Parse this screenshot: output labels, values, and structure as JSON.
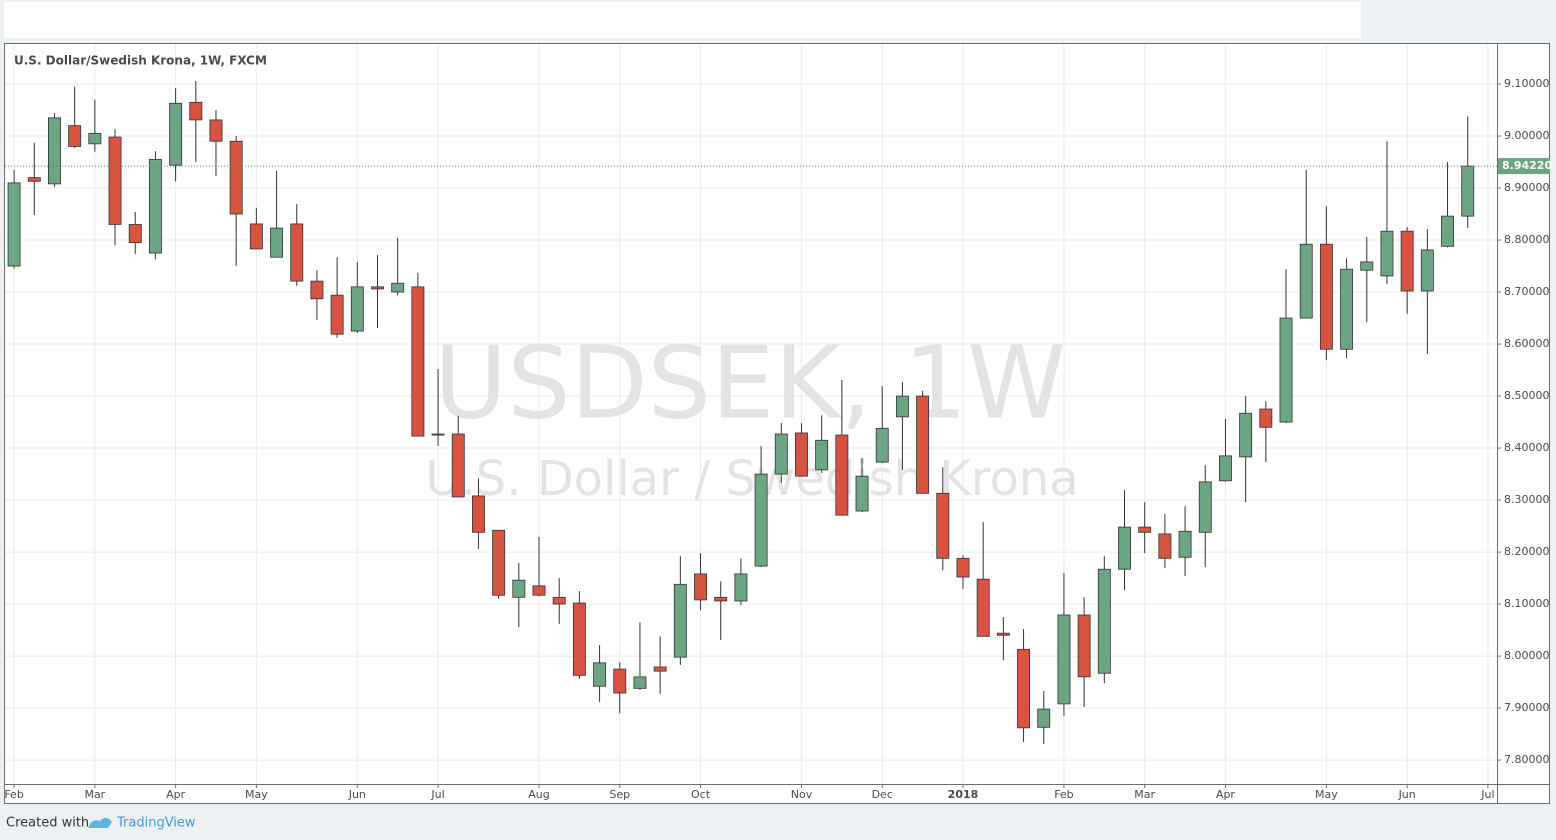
{
  "chart_data": {
    "type": "candlestick",
    "title": "U.S. Dollar/Swedish Krona, 1W, FXCM",
    "watermark": "USDSEK, 1W",
    "watermark_subtitle": "U.S. Dollar / Swedish Krona",
    "footer": "Created with",
    "footer_brand": "TradingView",
    "up_color": "#6ba583",
    "down_color": "#d75442",
    "grid": true,
    "open": [
      8.75,
      8.92,
      8.908,
      9.02,
      8.985,
      8.998,
      8.83,
      8.775,
      8.944,
      9.065,
      9.031,
      8.99,
      8.831,
      8.767,
      8.831,
      8.721,
      8.694,
      8.625,
      8.71,
      8.7,
      8.71,
      8.427,
      8.427,
      8.308,
      8.242,
      8.113,
      8.135,
      8.113,
      8.102,
      7.942,
      7.975,
      7.938,
      7.979,
      7.998,
      8.158,
      8.113,
      8.106,
      8.173,
      8.35,
      8.429,
      8.358,
      8.425,
      8.279,
      8.373,
      8.46,
      8.5,
      8.313,
      8.188,
      8.148,
      8.044,
      8.013,
      7.863,
      7.908,
      8.079,
      7.967,
      8.167,
      8.248,
      8.235,
      8.19,
      8.238,
      8.337,
      8.383,
      8.475,
      8.45,
      8.65,
      8.792,
      8.59,
      8.742,
      8.731,
      8.817,
      8.702,
      8.788,
      8.846
    ],
    "high": [
      8.935,
      8.987,
      9.044,
      9.095,
      9.07,
      9.013,
      8.854,
      8.971,
      9.092,
      9.106,
      9.05,
      9.0,
      8.862,
      8.933,
      8.869,
      8.742,
      8.767,
      8.758,
      8.771,
      8.804,
      8.737,
      8.552,
      8.462,
      8.342,
      8.242,
      8.179,
      8.229,
      8.15,
      8.125,
      8.021,
      7.988,
      8.065,
      8.038,
      8.192,
      8.198,
      8.144,
      8.188,
      8.404,
      8.448,
      8.448,
      8.463,
      8.531,
      8.381,
      8.519,
      8.527,
      8.51,
      8.363,
      8.194,
      8.258,
      8.075,
      8.052,
      7.933,
      8.16,
      8.113,
      8.192,
      8.319,
      8.296,
      8.273,
      8.288,
      8.367,
      8.456,
      8.5,
      8.49,
      8.744,
      8.935,
      8.865,
      8.765,
      8.806,
      8.99,
      8.825,
      8.821,
      8.95,
      9.038
    ],
    "low": [
      8.745,
      8.848,
      8.902,
      8.977,
      8.97,
      8.79,
      8.773,
      8.763,
      8.913,
      8.95,
      8.923,
      8.75,
      8.783,
      8.767,
      8.712,
      8.646,
      8.612,
      8.621,
      8.631,
      8.694,
      8.423,
      8.404,
      8.306,
      8.206,
      8.11,
      8.056,
      8.115,
      8.062,
      7.956,
      7.912,
      7.89,
      7.935,
      7.927,
      7.983,
      8.088,
      8.031,
      8.098,
      8.171,
      8.333,
      8.346,
      8.352,
      8.271,
      8.277,
      8.371,
      8.358,
      8.313,
      8.165,
      8.129,
      8.038,
      7.992,
      7.835,
      7.831,
      7.885,
      7.902,
      7.948,
      8.127,
      8.198,
      8.169,
      8.154,
      8.171,
      8.335,
      8.296,
      8.373,
      8.448,
      8.65,
      8.569,
      8.573,
      8.642,
      8.715,
      8.658,
      8.581,
      8.786,
      8.823
    ],
    "close": [
      8.91,
      8.913,
      9.035,
      8.98,
      9.005,
      8.83,
      8.795,
      8.955,
      9.063,
      9.031,
      8.99,
      8.85,
      8.783,
      8.823,
      8.721,
      8.687,
      8.619,
      8.71,
      8.706,
      8.717,
      8.423,
      8.425,
      8.306,
      8.238,
      8.117,
      8.146,
      8.117,
      8.1,
      7.963,
      7.987,
      7.929,
      7.96,
      7.971,
      8.138,
      8.108,
      8.106,
      8.158,
      8.35,
      8.427,
      8.346,
      8.415,
      8.271,
      8.346,
      8.438,
      8.5,
      8.313,
      8.188,
      8.152,
      8.038,
      8.04,
      7.862,
      7.898,
      8.079,
      7.96,
      8.167,
      8.248,
      8.238,
      8.188,
      8.24,
      8.335,
      8.385,
      8.467,
      8.44,
      8.65,
      8.792,
      8.59,
      8.744,
      8.758,
      8.817,
      8.702,
      8.781,
      8.846,
      8.9422
    ],
    "last_value": 8.9422,
    "last_value_label": "8.94220",
    "ylim": [
      7.754,
      9.177
    ],
    "yticks": [
      {
        "value": 7.8,
        "label": "7.80000"
      },
      {
        "value": 7.9,
        "label": "7.90000"
      },
      {
        "value": 8.0,
        "label": "8.00000"
      },
      {
        "value": 8.1,
        "label": "8.10000"
      },
      {
        "value": 8.2,
        "label": "8.20000"
      },
      {
        "value": 8.3,
        "label": "8.30000"
      },
      {
        "value": 8.4,
        "label": "8.40000"
      },
      {
        "value": 8.5,
        "label": "8.50000"
      },
      {
        "value": 8.6,
        "label": "8.60000"
      },
      {
        "value": 8.7,
        "label": "8.70000"
      },
      {
        "value": 8.8,
        "label": "8.80000"
      },
      {
        "value": 8.9,
        "label": "8.90000"
      },
      {
        "value": 9.0,
        "label": "9.00000"
      },
      {
        "value": 9.1,
        "label": "9.10000"
      }
    ],
    "xlim": [
      -0.45,
      73.45
    ],
    "xticks": [
      {
        "value": 0,
        "label": "Feb"
      },
      {
        "value": 4,
        "label": "Mar"
      },
      {
        "value": 8,
        "label": "Apr"
      },
      {
        "value": 12,
        "label": "May"
      },
      {
        "value": 17,
        "label": "Jun"
      },
      {
        "value": 21,
        "label": "Jul"
      },
      {
        "value": 26,
        "label": "Aug"
      },
      {
        "value": 30,
        "label": "Sep"
      },
      {
        "value": 34,
        "label": "Oct"
      },
      {
        "value": 39,
        "label": "Nov"
      },
      {
        "value": 43,
        "label": "Dec"
      },
      {
        "value": 47,
        "label": "2018"
      },
      {
        "value": 52,
        "label": "Feb"
      },
      {
        "value": 56,
        "label": "Mar"
      },
      {
        "value": 60,
        "label": "Apr"
      },
      {
        "value": 65,
        "label": "May"
      },
      {
        "value": 69,
        "label": "Jun"
      },
      {
        "value": 73,
        "label": "Jul"
      }
    ]
  }
}
